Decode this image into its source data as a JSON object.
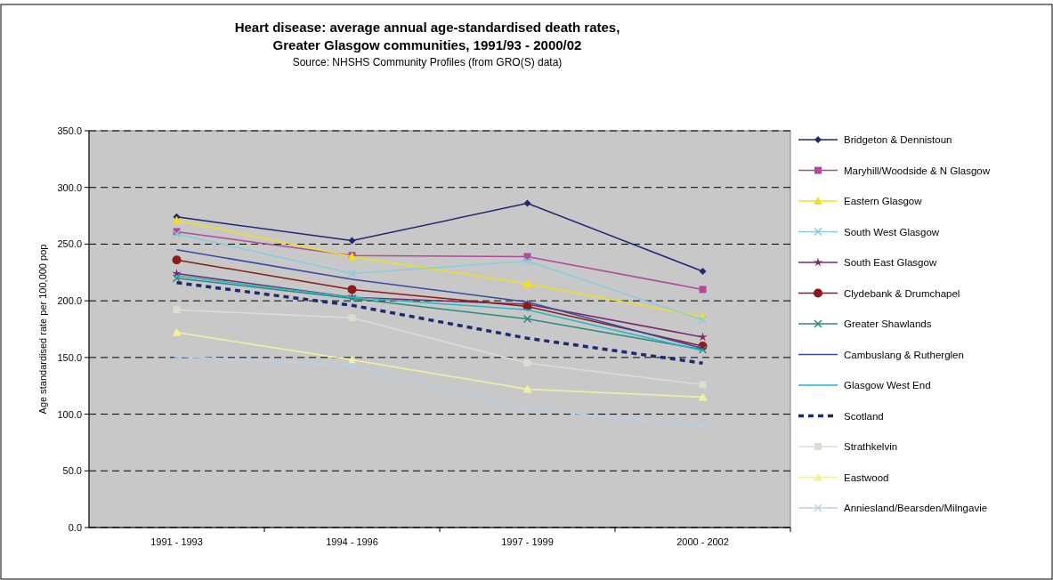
{
  "chart_data": {
    "type": "line",
    "title": "Heart disease: average annual age-standardised death rates,\nGreater Glasgow communities, 1991/93 - 2000/02",
    "subtitle": "Source: NHSHS Community Profiles (from GRO(S) data)",
    "ylabel": "Age standardised rate per 100,000 pop",
    "categories": [
      "1991 - 1993",
      "1994 - 1996",
      "1997 - 1999",
      "2000 - 2002"
    ],
    "ylim": [
      0,
      350
    ],
    "yticks": [
      {
        "value": 0,
        "label": "0.0"
      },
      {
        "value": 50,
        "label": "50.0"
      },
      {
        "value": 100,
        "label": "100.0"
      },
      {
        "value": 150,
        "label": "150.0"
      },
      {
        "value": 200,
        "label": "200.0"
      },
      {
        "value": 250,
        "label": "250.0"
      },
      {
        "value": 300,
        "label": "300.0"
      },
      {
        "value": 350,
        "label": "350.0"
      }
    ],
    "grid": "y",
    "legend": "right",
    "line_style": "solid",
    "series": [
      {
        "name": "Bridgeton & Dennistoun",
        "color": "#1f2a6e",
        "marker": "diamond",
        "values": [
          274,
          253,
          286,
          226
        ]
      },
      {
        "name": "Maryhill/Woodside & N Glasgow",
        "color": "#b04a9a",
        "marker": "square",
        "values": [
          261,
          240,
          239,
          210
        ]
      },
      {
        "name": "Eastern Glasgow",
        "color": "#f0e020",
        "marker": "triangle",
        "values": [
          271,
          239,
          215,
          186
        ]
      },
      {
        "name": "South West Glasgow",
        "color": "#88ccdd",
        "marker": "cross",
        "values": [
          259,
          224,
          235,
          183
        ]
      },
      {
        "name": "South East Glasgow",
        "color": "#7a2a6a",
        "marker": "star",
        "values": [
          224,
          203,
          197,
          168
        ]
      },
      {
        "name": "Clydebank & Drumchapel",
        "color": "#8b1a1a",
        "marker": "circle",
        "values": [
          236,
          210,
          195,
          160
        ]
      },
      {
        "name": "Greater Shawlands",
        "color": "#2a8a80",
        "marker": "cross",
        "values": [
          220,
          202,
          184,
          157
        ]
      },
      {
        "name": "Cambuslang & Rutherglen",
        "color": "#3a4aa0",
        "marker": "none",
        "values": [
          245,
          219,
          199,
          158
        ]
      },
      {
        "name": "Glasgow West End",
        "color": "#20b8c8",
        "marker": "none",
        "values": [
          222,
          203,
          192,
          156
        ]
      },
      {
        "name": "Scotland",
        "color": "#1f2a6e",
        "marker": "none",
        "line_style": "dashed",
        "values": [
          216,
          196,
          167,
          145
        ]
      },
      {
        "name": "Strathkelvin",
        "color": "#d8e0d0",
        "marker": "square",
        "values": [
          192,
          185,
          145,
          126
        ]
      },
      {
        "name": "Eastwood",
        "color": "#f4f0a0",
        "marker": "triangle",
        "values": [
          172,
          148,
          122,
          115
        ]
      },
      {
        "name": "Anniesland/Bearsden/Milngavie",
        "color": "#b8d0e8",
        "marker": "cross",
        "values": [
          151,
          143,
          105,
          89
        ]
      }
    ]
  }
}
